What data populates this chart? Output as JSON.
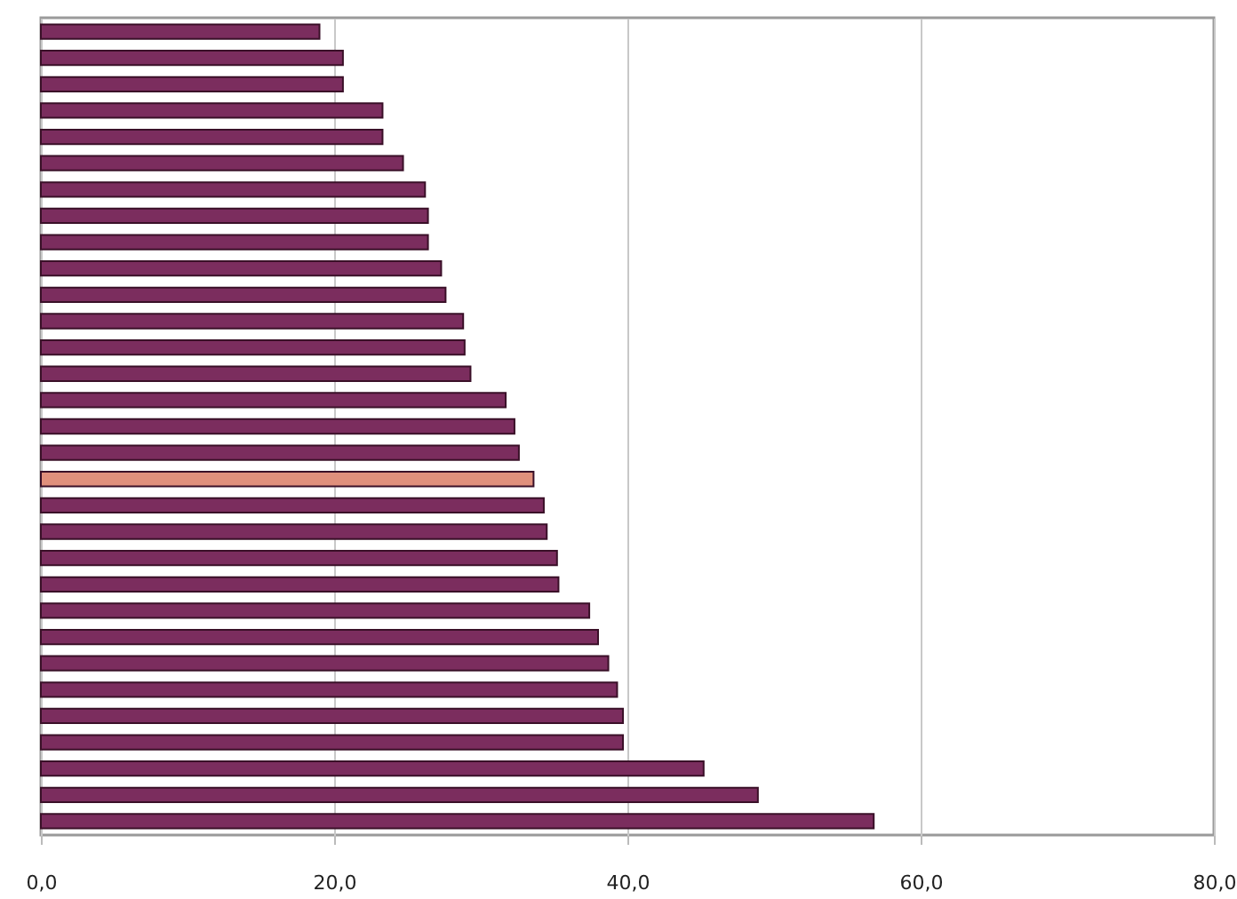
{
  "chart_data": {
    "type": "bar",
    "orientation": "horizontal",
    "categories": [
      null,
      null,
      null,
      null,
      null,
      null,
      null,
      null,
      null,
      null,
      null,
      null,
      null,
      null,
      null,
      null,
      null,
      null,
      null,
      null,
      null,
      null,
      null,
      null,
      null,
      null,
      null,
      null,
      null,
      null,
      null
    ],
    "values": [
      19.0,
      20.6,
      20.6,
      23.3,
      23.3,
      24.7,
      26.2,
      26.4,
      26.4,
      27.3,
      27.6,
      28.8,
      28.9,
      29.3,
      31.7,
      32.3,
      32.6,
      33.6,
      34.3,
      34.5,
      35.2,
      35.3,
      37.4,
      38.0,
      38.7,
      39.3,
      39.7,
      39.7,
      45.2,
      48.9,
      56.8
    ],
    "colors": [
      "#7b2d5e",
      "#7b2d5e",
      "#7b2d5e",
      "#7b2d5e",
      "#7b2d5e",
      "#7b2d5e",
      "#7b2d5e",
      "#7b2d5e",
      "#7b2d5e",
      "#7b2d5e",
      "#7b2d5e",
      "#7b2d5e",
      "#7b2d5e",
      "#7b2d5e",
      "#7b2d5e",
      "#7b2d5e",
      "#7b2d5e",
      "#e0907c",
      "#7b2d5e",
      "#7b2d5e",
      "#7b2d5e",
      "#7b2d5e",
      "#7b2d5e",
      "#7b2d5e",
      "#7b2d5e",
      "#7b2d5e",
      "#7b2d5e",
      "#7b2d5e",
      "#7b2d5e",
      "#7b2d5e",
      "#7b2d5e"
    ],
    "xlim": [
      0,
      80
    ],
    "xticks": [
      {
        "value": 0,
        "label": "0,0"
      },
      {
        "value": 20,
        "label": "20,0"
      },
      {
        "value": 40,
        "label": "40,0"
      },
      {
        "value": 60,
        "label": "60,0"
      },
      {
        "value": 80,
        "label": "80,0"
      }
    ],
    "grid": "x"
  }
}
